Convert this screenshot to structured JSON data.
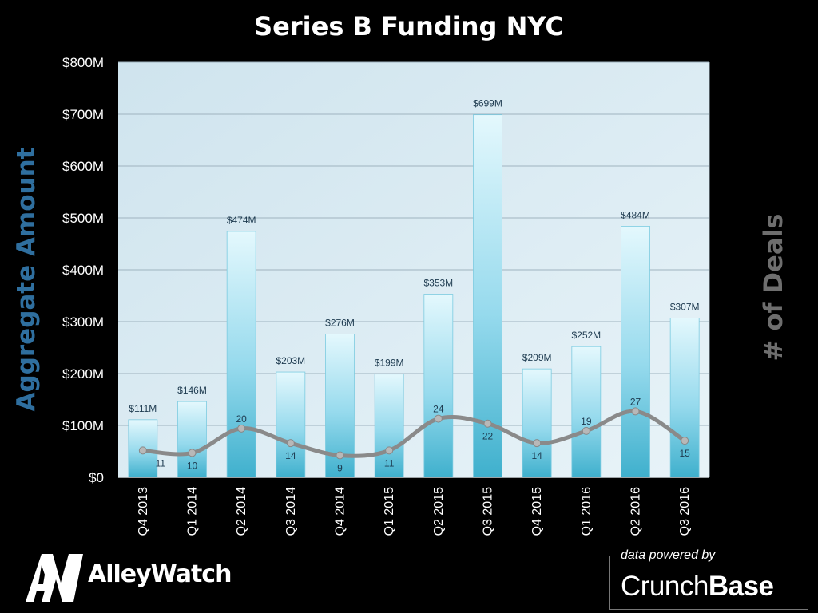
{
  "chart_data": {
    "type": "bar",
    "title": "Series B  Funding NYC",
    "ylabel": "Aggregate Amount",
    "y2label": "# of Deals",
    "categories": [
      "Q4 2013",
      "Q1 2014",
      "Q2 2014",
      "Q3 2014",
      "Q4 2014",
      "Q1 2015",
      "Q2 2015",
      "Q3 2015",
      "Q4 2015",
      "Q1 2016",
      "Q2 2016",
      "Q3 2016"
    ],
    "series": [
      {
        "type": "bar",
        "values": [
          111,
          146,
          474,
          203,
          276,
          199,
          353,
          699,
          209,
          252,
          484,
          307
        ],
        "labels": [
          "$111M",
          "$146M",
          "$474M",
          "$203M",
          "$276M",
          "$199M",
          "$353M",
          "$699M",
          "$209M",
          "$252M",
          "$484M",
          "$307M"
        ]
      },
      {
        "type": "line",
        "values": [
          11,
          10,
          20,
          14,
          9,
          11,
          24,
          22,
          14,
          19,
          27,
          15
        ],
        "labels": [
          "11",
          "10",
          "20",
          "14",
          "9",
          "11",
          "24",
          "22",
          "14",
          "19",
          "27",
          "15"
        ]
      }
    ],
    "ylim": [
      0,
      800
    ],
    "yticks": [
      "$0",
      "$100M",
      "$200M",
      "$300M",
      "$400M",
      "$500M",
      "$600M",
      "$700M",
      "$800M"
    ],
    "grid": true,
    "colors": {
      "bar_top": "#dff6fc",
      "bar_bottom": "#45b6d2",
      "line": "#8a8a8a",
      "plot_bg": "#dcecf3"
    }
  },
  "branding": {
    "logo_initials": "AW",
    "logo_name": "AlleyWatch",
    "powered_by": "data powered by",
    "provider_light": "Crunch",
    "provider_bold": "Base"
  }
}
